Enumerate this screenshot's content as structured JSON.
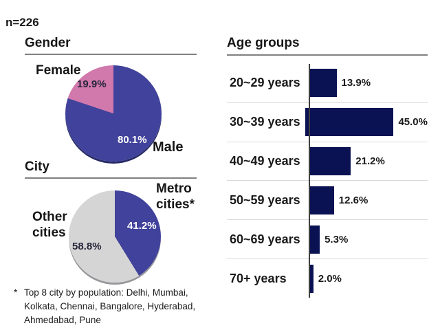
{
  "slide": {
    "sample_size": "n=226"
  },
  "sections": {
    "gender": {
      "title": "Gender",
      "female_label": "Female",
      "female_pct": "19.9%",
      "male_label": "Male",
      "male_pct": "80.1%"
    },
    "city": {
      "title": "City",
      "metro_label": "Metro cities*",
      "metro_pct": "41.2%",
      "other_label": "Other cities",
      "other_pct": "58.8%",
      "footnote_marker": "*",
      "footnote_text": "Top 8 city by population: Delhi, Mumbai, Kolkata, Chennai, Bangalore, Hyderabad, Ahmedabad, Pune"
    },
    "age": {
      "title": "Age groups"
    }
  },
  "colors": {
    "pie_blue": "#41429B",
    "pie_pink": "#D178AC",
    "pie_gray": "#D5D5D5",
    "bar_navy": "#0A1254",
    "rule_gray": "#808080",
    "axis_gray": "#3F3F3F",
    "separator_gray": "#DADADA"
  },
  "chart_data": [
    {
      "type": "pie",
      "title": "Gender",
      "labels": [
        "Male",
        "Female"
      ],
      "values": [
        80.1,
        19.9
      ],
      "value_labels": [
        "80.1%",
        "19.9%"
      ],
      "colors": [
        "#41429B",
        "#D178AC"
      ],
      "start_angle_deg": 0,
      "direction": "clockwise",
      "sample_size": 226
    },
    {
      "type": "pie",
      "title": "City",
      "labels": [
        "Metro cities*",
        "Other cities"
      ],
      "values": [
        41.2,
        58.8
      ],
      "value_labels": [
        "41.2%",
        "58.8%"
      ],
      "colors": [
        "#41429B",
        "#D5D5D5"
      ],
      "start_angle_deg": 0,
      "direction": "clockwise",
      "footnote": "Top 8 city by population: Delhi, Mumbai, Kolkata, Chennai, Bangalore, Hyderabad, Ahmedabad, Pune"
    },
    {
      "type": "bar",
      "title": "Age groups",
      "orientation": "horizontal",
      "categories": [
        "20~29 years",
        "30~39 years",
        "40~49 years",
        "50~59 years",
        "60~69 years",
        "70+ years"
      ],
      "values": [
        13.9,
        45.0,
        21.2,
        12.6,
        5.3,
        2.0
      ],
      "value_labels": [
        "13.9%",
        "45.0%",
        "21.2%",
        "12.6%",
        "5.3%",
        "2.0%"
      ],
      "bar_color": "#0A1254",
      "xlim": [
        0,
        50
      ],
      "grid": "row-separators",
      "value_label_position": "right-of-bar",
      "legend": "none"
    }
  ]
}
